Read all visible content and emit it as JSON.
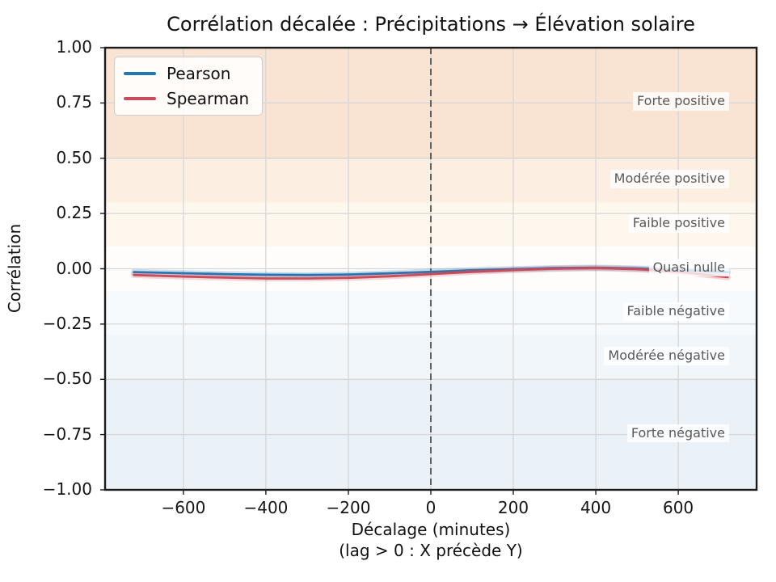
{
  "chart_data": {
    "type": "line",
    "title": "Corrélation décalée : Précipitations → Élévation solaire",
    "xlabel": "Décalage (minutes)",
    "xlabel_note": "(lag > 0 : X précède Y)",
    "ylabel": "Corrélation",
    "xlim": [
      -790,
      790
    ],
    "ylim": [
      -1.0,
      1.0
    ],
    "grid": true,
    "legend_position": "upper-left",
    "gridline_color": "#d6d6d6",
    "spine_color": "#1c1c1c",
    "xticks": [
      {
        "v": -600,
        "label": "−600"
      },
      {
        "v": -400,
        "label": "−400"
      },
      {
        "v": -200,
        "label": "−200"
      },
      {
        "v": 0,
        "label": "0"
      },
      {
        "v": 200,
        "label": "200"
      },
      {
        "v": 400,
        "label": "400"
      },
      {
        "v": 600,
        "label": "600"
      }
    ],
    "yticks": [
      {
        "v": 1.0,
        "label": "1.00"
      },
      {
        "v": 0.75,
        "label": "0.75"
      },
      {
        "v": 0.5,
        "label": "0.50"
      },
      {
        "v": 0.25,
        "label": "0.25"
      },
      {
        "v": 0.0,
        "label": "0.00"
      },
      {
        "v": -0.25,
        "label": "−0.25"
      },
      {
        "v": -0.5,
        "label": "−0.50"
      },
      {
        "v": -0.75,
        "label": "−0.75"
      },
      {
        "v": -1.0,
        "label": "−1.00"
      }
    ],
    "x": [
      -720,
      -600,
      -500,
      -400,
      -300,
      -200,
      -100,
      0,
      100,
      200,
      300,
      400,
      500,
      600,
      720
    ],
    "series": [
      {
        "name": "Pearson",
        "color": "#1f77b4",
        "values": [
          -0.015,
          -0.02,
          -0.024,
          -0.027,
          -0.028,
          -0.026,
          -0.021,
          -0.014,
          -0.007,
          -0.002,
          0.003,
          0.005,
          0.001,
          -0.006,
          -0.015
        ]
      },
      {
        "name": "Spearman",
        "color": "#c94c5c",
        "values": [
          -0.028,
          -0.035,
          -0.04,
          -0.044,
          -0.044,
          -0.041,
          -0.034,
          -0.024,
          -0.014,
          -0.006,
          0.0,
          0.003,
          -0.002,
          -0.014,
          -0.038
        ]
      }
    ],
    "zero_lag_line": {
      "x": 0,
      "style": "dashed",
      "color": "#4a4a4a"
    },
    "bands": [
      {
        "range": [
          0.5,
          1.0
        ],
        "color": "#f9e3d3",
        "label": "Forte positive",
        "label_at": 0.75
      },
      {
        "range": [
          0.3,
          0.5
        ],
        "color": "#fceee1",
        "label": "Modérée positive",
        "label_at": 0.4
      },
      {
        "range": [
          0.1,
          0.3
        ],
        "color": "#fdf7ee",
        "label": "Faible positive",
        "label_at": 0.2
      },
      {
        "range": [
          -0.1,
          0.1
        ],
        "color": "#fefdfc",
        "label": "Quasi nulle",
        "label_at": 0.0
      },
      {
        "range": [
          -0.3,
          -0.1
        ],
        "color": "#f7fafc",
        "label": "Faible négative",
        "label_at": -0.2
      },
      {
        "range": [
          -0.5,
          -0.3
        ],
        "color": "#f1f6fa",
        "label": "Modérée négative",
        "label_at": -0.4
      },
      {
        "range": [
          -1.0,
          -0.5
        ],
        "color": "#eaf1f7",
        "label": "Forte négative",
        "label_at": -0.75
      }
    ]
  }
}
